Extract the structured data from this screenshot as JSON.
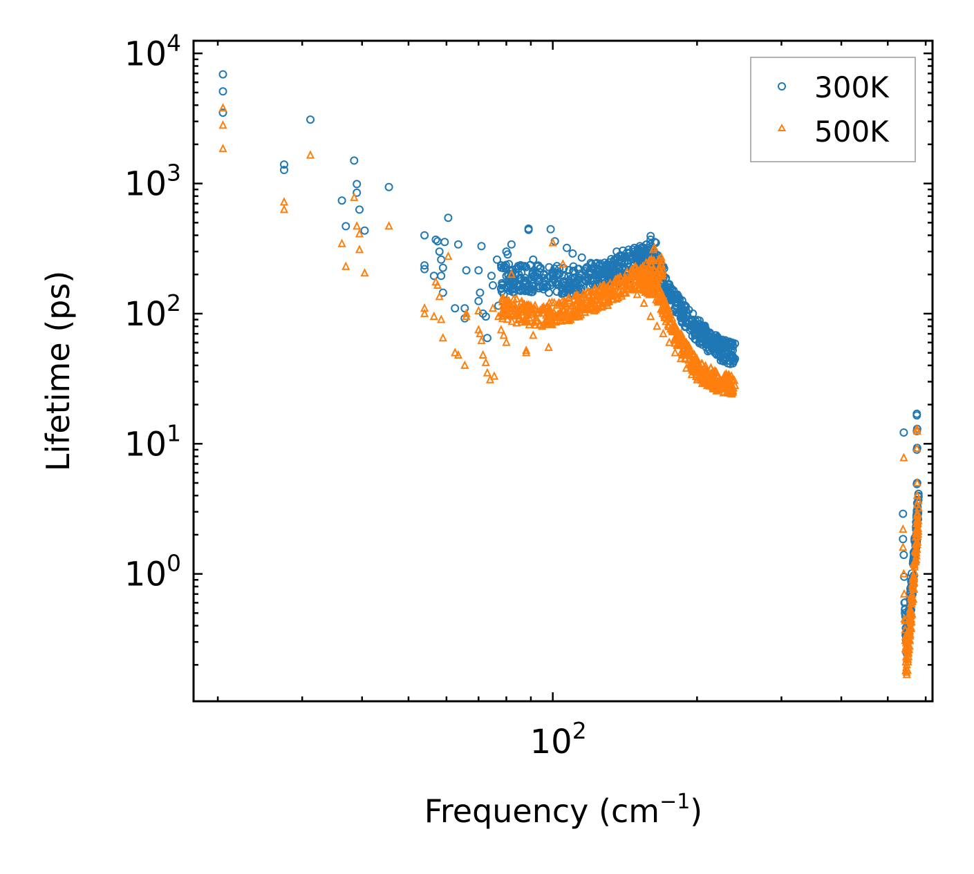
{
  "chart_data": {
    "type": "scatter",
    "xlabel": "Frequency (cm",
    "xlabel_sup": "−1",
    "xlabel_close": ")",
    "ylabel": "Lifetime (ps)",
    "xscale": "log",
    "yscale": "log",
    "xlim": [
      17.8,
      620
    ],
    "ylim": [
      0.105,
      12500
    ],
    "x_ticks": [
      {
        "base": "10",
        "exp": "2",
        "value": 100
      }
    ],
    "y_ticks": [
      {
        "base": "10",
        "exp": "0",
        "value": 1
      },
      {
        "base": "10",
        "exp": "1",
        "value": 10
      },
      {
        "base": "10",
        "exp": "2",
        "value": 100
      },
      {
        "base": "10",
        "exp": "3",
        "value": 1000
      },
      {
        "base": "10",
        "exp": "4",
        "value": 10000
      }
    ],
    "legend": {
      "position": "top-right"
    },
    "series": [
      {
        "name": "300K",
        "color": "#1f77b4",
        "marker": "circle",
        "points": [
          [
            20.5,
            6900
          ],
          [
            20.5,
            5100
          ],
          [
            20.5,
            3500
          ],
          [
            27.5,
            1400
          ],
          [
            27.5,
            1270
          ],
          [
            31.2,
            3100
          ],
          [
            36.3,
            740
          ],
          [
            37,
            470
          ],
          [
            38.5,
            1500
          ],
          [
            39,
            990
          ],
          [
            39,
            850
          ],
          [
            39.5,
            630
          ],
          [
            40.5,
            435
          ],
          [
            45.5,
            940
          ],
          [
            54,
            400
          ],
          [
            54,
            235
          ],
          [
            54,
            220
          ],
          [
            56.5,
            195
          ],
          [
            57,
            370
          ],
          [
            57.5,
            360
          ],
          [
            58,
            300
          ],
          [
            58.5,
            260
          ],
          [
            58.5,
            195
          ],
          [
            59,
            225
          ],
          [
            59,
            145
          ],
          [
            59.5,
            355
          ],
          [
            60.5,
            545
          ],
          [
            62.5,
            110
          ],
          [
            63.5,
            340
          ],
          [
            65.5,
            110
          ],
          [
            65.5,
            92
          ],
          [
            66,
            215
          ],
          [
            70,
            215
          ],
          [
            70,
            125
          ],
          [
            70.5,
            145
          ],
          [
            71,
            330
          ],
          [
            71.5,
            100
          ],
          [
            72.5,
            95
          ],
          [
            73,
            65
          ],
          [
            74.5,
            195
          ],
          [
            75,
            165
          ],
          [
            76.5,
            260
          ],
          [
            77,
            115
          ],
          [
            78,
            155
          ],
          [
            79,
            140
          ],
          [
            80,
            300
          ],
          [
            80.5,
            285
          ],
          [
            81,
            240
          ],
          [
            82,
            340
          ],
          [
            89,
            450
          ],
          [
            89,
            440
          ],
          [
            91,
            260
          ],
          [
            99,
            445
          ],
          [
            101,
            360
          ],
          [
            107,
            320
          ],
          [
            110,
            290
          ],
          [
            115,
            270
          ],
          [
            120,
            245
          ],
          [
            136,
            300
          ],
          [
            140,
            305
          ],
          [
            144,
            310
          ],
          [
            148,
            320
          ],
          [
            152,
            330
          ],
          [
            157,
            340
          ],
          [
            160,
            395
          ],
          [
            160,
            370
          ],
          [
            165,
            210
          ],
          [
            168,
            180
          ],
          [
            172,
            150
          ],
          [
            175,
            130
          ],
          [
            180,
            110
          ],
          [
            185,
            95
          ],
          [
            190,
            85
          ],
          [
            195,
            80
          ],
          [
            200,
            70
          ],
          [
            205,
            65
          ],
          [
            210,
            60
          ],
          [
            215,
            55
          ],
          [
            220,
            65
          ],
          [
            225,
            60
          ],
          [
            230,
            55
          ],
          [
            235,
            48
          ],
          [
            240,
            45
          ],
          [
            540,
            12.2
          ],
          [
            538,
            2.9
          ],
          [
            538,
            1.85
          ],
          [
            540,
            1.4
          ],
          [
            541,
            0.95
          ],
          [
            542,
            0.6
          ],
          [
            543,
            0.5
          ],
          [
            575,
            17
          ],
          [
            575,
            16.5
          ],
          [
            576,
            13
          ],
          [
            575,
            12.5
          ],
          [
            576,
            9.3
          ],
          [
            575,
            9.0
          ],
          [
            576,
            5.0
          ],
          [
            575,
            4.9
          ],
          [
            576,
            3.5
          ]
        ]
      },
      {
        "name": "500K",
        "color": "#ff7f0e",
        "marker": "triangle",
        "points": [
          [
            20.5,
            3800
          ],
          [
            20.5,
            2800
          ],
          [
            20.5,
            1850
          ],
          [
            27.5,
            720
          ],
          [
            27.5,
            630
          ],
          [
            31.2,
            1650
          ],
          [
            36.3,
            345
          ],
          [
            37,
            230
          ],
          [
            38.5,
            780
          ],
          [
            39,
            470
          ],
          [
            39.5,
            410
          ],
          [
            39.5,
            310
          ],
          [
            40.5,
            205
          ],
          [
            45.5,
            470
          ],
          [
            54,
            110
          ],
          [
            54,
            100
          ],
          [
            56.5,
            95
          ],
          [
            57,
            175
          ],
          [
            57.5,
            165
          ],
          [
            58,
            135
          ],
          [
            58.5,
            90
          ],
          [
            59,
            65
          ],
          [
            60.5,
            275
          ],
          [
            62.5,
            50
          ],
          [
            63.5,
            48
          ],
          [
            65.5,
            40
          ],
          [
            66,
            100
          ],
          [
            66,
            95
          ],
          [
            70,
            105
          ],
          [
            70,
            75
          ],
          [
            70.5,
            70
          ],
          [
            71,
            62
          ],
          [
            71.5,
            48
          ],
          [
            72.5,
            42
          ],
          [
            73,
            35
          ],
          [
            74,
            31
          ],
          [
            75,
            110
          ],
          [
            75.5,
            33
          ],
          [
            77,
            95
          ],
          [
            78,
            75
          ],
          [
            79,
            68
          ],
          [
            80,
            60
          ],
          [
            82,
            200
          ],
          [
            84,
            130
          ],
          [
            86,
            110
          ],
          [
            88,
            52
          ],
          [
            88,
            50
          ],
          [
            91,
            68
          ],
          [
            95,
            80
          ],
          [
            98,
            55
          ],
          [
            100,
            350
          ],
          [
            101,
            95
          ],
          [
            105,
            240
          ],
          [
            110,
            100
          ],
          [
            115,
            115
          ],
          [
            120,
            125
          ],
          [
            125,
            135
          ],
          [
            130,
            145
          ],
          [
            135,
            160
          ],
          [
            140,
            175
          ],
          [
            145,
            190
          ],
          [
            150,
            210
          ],
          [
            155,
            220
          ],
          [
            160,
            240
          ],
          [
            162,
            310
          ],
          [
            163,
            320
          ],
          [
            150,
            140
          ],
          [
            155,
            120
          ],
          [
            160,
            95
          ],
          [
            165,
            80
          ],
          [
            170,
            70
          ],
          [
            175,
            60
          ],
          [
            180,
            50
          ],
          [
            185,
            45
          ],
          [
            190,
            38
          ],
          [
            195,
            34
          ],
          [
            200,
            31
          ],
          [
            205,
            29
          ],
          [
            210,
            28
          ],
          [
            220,
            29
          ],
          [
            230,
            29
          ],
          [
            240,
            28
          ],
          [
            540,
            7.8
          ],
          [
            538,
            2.2
          ],
          [
            538,
            1.6
          ],
          [
            540,
            1.0
          ],
          [
            541,
            0.7
          ],
          [
            542,
            0.45
          ],
          [
            545,
            0.18
          ],
          [
            548,
            0.2
          ],
          [
            575,
            13
          ],
          [
            576,
            12.5
          ],
          [
            575,
            9.2
          ],
          [
            576,
            5.0
          ],
          [
            576,
            4.0
          ],
          [
            576,
            3.4
          ]
        ]
      }
    ]
  }
}
